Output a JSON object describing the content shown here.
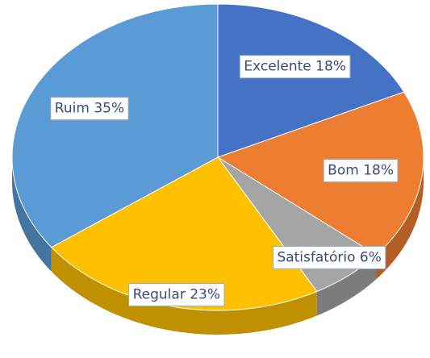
{
  "chart_data": {
    "type": "pie",
    "categories": [
      "Excelente",
      "Bom",
      "Satisfatório",
      "Regular",
      "Ruim"
    ],
    "values": [
      18,
      18,
      6,
      23,
      35
    ],
    "value_labels": [
      "18%",
      "18%",
      "6%",
      "23%",
      "35%"
    ],
    "colors": [
      "#4472c4",
      "#ed7d31",
      "#a5a5a5",
      "#ffc000",
      "#5b9bd5"
    ]
  }
}
